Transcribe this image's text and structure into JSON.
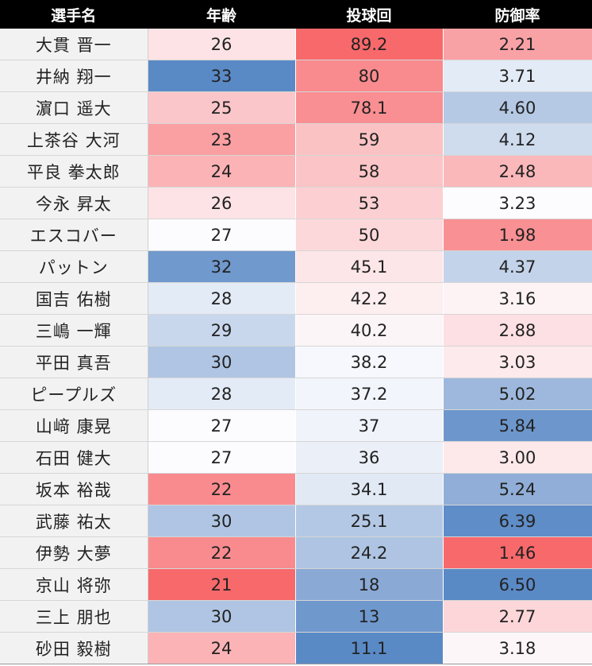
{
  "headers": [
    "選手名",
    "年齢",
    "投球回",
    "防御率"
  ],
  "rows": [
    {
      "name": "大貫 晋一",
      "age": "26",
      "innings": "89.2",
      "era": "2.21",
      "age_bg": "#fde3e5",
      "innings_bg": "#f8696b",
      "era_bg": "#f9a2a6"
    },
    {
      "name": "井納 翔一",
      "age": "33",
      "innings": "80",
      "era": "3.71",
      "age_bg": "#5a8ac6",
      "innings_bg": "#f98a8d",
      "era_bg": "#e3ebf6"
    },
    {
      "name": "濵口 遥大",
      "age": "25",
      "innings": "78.1",
      "era": "4.60",
      "age_bg": "#fbc6c9",
      "innings_bg": "#f98f92",
      "era_bg": "#b5c9e5"
    },
    {
      "name": "上茶谷 大河",
      "age": "23",
      "innings": "59",
      "era": "4.12",
      "age_bg": "#fa9fa2",
      "innings_bg": "#fbc2c4",
      "era_bg": "#cfdcee"
    },
    {
      "name": "平良 拳太郎",
      "age": "24",
      "innings": "58",
      "era": "2.48",
      "age_bg": "#fbb3b6",
      "innings_bg": "#fbc4c6",
      "era_bg": "#fab8bb"
    },
    {
      "name": "今永 昇太",
      "age": "26",
      "innings": "53",
      "era": "3.23",
      "age_bg": "#fde3e5",
      "innings_bg": "#fcd0d2",
      "era_bg": "#fcfcff"
    },
    {
      "name": "エスコバー",
      "age": "27",
      "innings": "50",
      "era": "1.98",
      "age_bg": "#fcfcff",
      "innings_bg": "#fcd8da",
      "era_bg": "#f99093"
    },
    {
      "name": "パットン",
      "age": "32",
      "innings": "45.1",
      "era": "4.37",
      "age_bg": "#7099cd",
      "innings_bg": "#fde6e8",
      "era_bg": "#c3d3ea"
    },
    {
      "name": "国吉 佑樹",
      "age": "28",
      "innings": "42.2",
      "era": "3.16",
      "age_bg": "#e3ebf6",
      "innings_bg": "#fdeef0",
      "era_bg": "#fdf3f5"
    },
    {
      "name": "三嶋 一輝",
      "age": "29",
      "innings": "40.2",
      "era": "2.88",
      "age_bg": "#c8d7ec",
      "innings_bg": "#fcf5f7",
      "era_bg": "#fce0e3"
    },
    {
      "name": "平田 真吾",
      "age": "30",
      "innings": "38.2",
      "era": "3.03",
      "age_bg": "#afc5e3",
      "innings_bg": "#f7f8fd",
      "era_bg": "#fdeaec"
    },
    {
      "name": "ピープルズ",
      "age": "28",
      "innings": "37.2",
      "era": "5.02",
      "age_bg": "#e3ebf6",
      "innings_bg": "#f2f5fb",
      "era_bg": "#9db8dc"
    },
    {
      "name": "山﨑 康晃",
      "age": "27",
      "innings": "37",
      "era": "5.84",
      "age_bg": "#fcfcff",
      "innings_bg": "#f0f3fa",
      "era_bg": "#6d97cc"
    },
    {
      "name": "石田 健大",
      "age": "27",
      "innings": "36",
      "era": "3.00",
      "age_bg": "#fcfcff",
      "innings_bg": "#ebf0f8",
      "era_bg": "#fde8ea"
    },
    {
      "name": "坂本 裕哉",
      "age": "22",
      "innings": "34.1",
      "era": "5.24",
      "age_bg": "#f98b8e",
      "innings_bg": "#e1e9f5",
      "era_bg": "#90aed7"
    },
    {
      "name": "武藤 祐太",
      "age": "30",
      "innings": "25.1",
      "era": "6.39",
      "age_bg": "#afc5e3",
      "innings_bg": "#b3c8e4",
      "era_bg": "#5f8dc7"
    },
    {
      "name": "伊勢 大夢",
      "age": "22",
      "innings": "24.2",
      "era": "1.46",
      "age_bg": "#f98b8e",
      "innings_bg": "#aec4e2",
      "era_bg": "#f8696b"
    },
    {
      "name": "京山 将弥",
      "age": "21",
      "innings": "18",
      "era": "6.50",
      "age_bg": "#f8696b",
      "innings_bg": "#8ba9d5",
      "era_bg": "#5a8ac6"
    },
    {
      "name": "三上 朋也",
      "age": "30",
      "innings": "13",
      "era": "2.77",
      "age_bg": "#afc5e3",
      "innings_bg": "#6f98cd",
      "era_bg": "#fcd6d9"
    },
    {
      "name": "砂田 毅樹",
      "age": "24",
      "innings": "11.1",
      "era": "3.18",
      "age_bg": "#fbb3b6",
      "innings_bg": "#5a8ac6",
      "era_bg": "#fdf6f8"
    }
  ]
}
